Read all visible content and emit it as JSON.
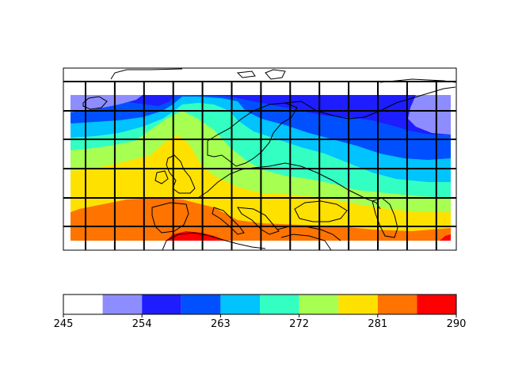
{
  "colorbar": {
    "min": 245,
    "max": 290,
    "ticks": [
      "245",
      "254",
      "263",
      "272",
      "281",
      "290"
    ],
    "tick_values": [
      245,
      254,
      263,
      272,
      281,
      290
    ],
    "levels": [
      245,
      249.5,
      254,
      258.5,
      263,
      267.5,
      272,
      276.5,
      281,
      285.5,
      290
    ],
    "colors": [
      "#ffffff",
      "#8d8dff",
      "#1d1dff",
      "#0050ff",
      "#00c3ff",
      "#33ffc3",
      "#a7ff52",
      "#ffe100",
      "#ff7300",
      "#ff0000"
    ]
  },
  "chart_data": {
    "type": "heatmap",
    "title": "",
    "xlabel": "",
    "ylabel": "",
    "description_key": "filled-contour temperature field over Europe",
    "zlim": [
      245,
      290
    ],
    "grid": true
  }
}
